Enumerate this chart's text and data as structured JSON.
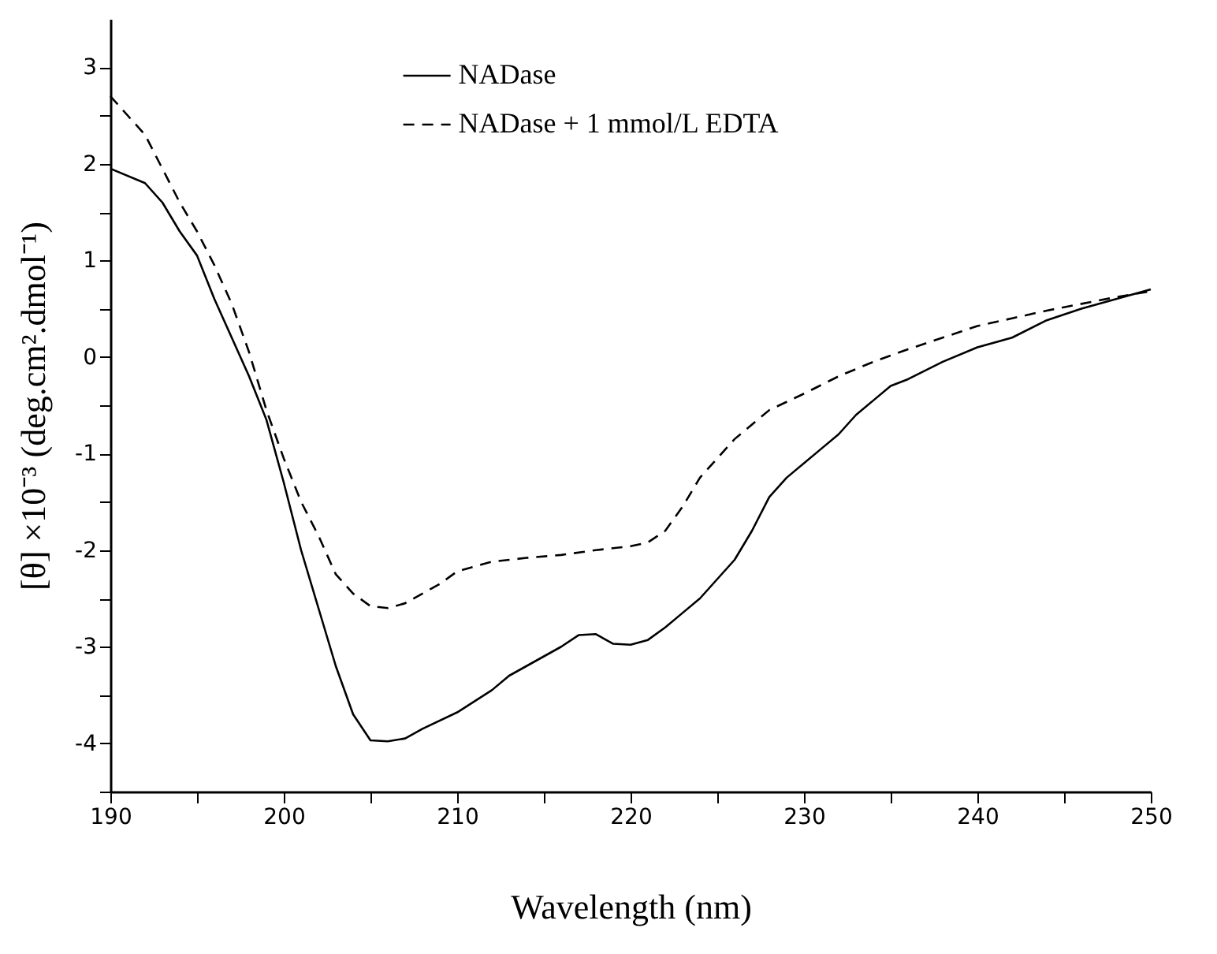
{
  "chart_data": {
    "type": "line",
    "xlabel": "Wavelength (nm)",
    "ylabel": "[θ] ×10⁻³ (deg.cm².dmol⁻¹)",
    "xlim": [
      190,
      250
    ],
    "ylim": [
      -4.5,
      3.5
    ],
    "xticks": [
      190,
      {
        "value": 195,
        "label": null
      },
      200,
      {
        "value": 205,
        "label": null
      },
      210,
      {
        "value": 215,
        "label": null
      },
      220,
      {
        "value": 225,
        "label": null
      },
      230,
      {
        "value": 235,
        "label": null
      },
      240,
      {
        "value": 245,
        "label": null
      },
      250
    ],
    "yticks": [
      {
        "value": -4.5,
        "label": null
      },
      -4,
      {
        "value": -3.5,
        "label": null
      },
      -3,
      {
        "value": -2.5,
        "label": null
      },
      -2,
      {
        "value": -1.5,
        "label": null
      },
      -1,
      {
        "value": -0.5,
        "label": null
      },
      0,
      {
        "value": 0.5,
        "label": null
      },
      1,
      {
        "value": 1.5,
        "label": null
      },
      2,
      {
        "value": 2.5,
        "label": null
      },
      3
    ],
    "grid": false,
    "legend": "top",
    "marker": "none",
    "series": [
      {
        "name": "NADase",
        "color": "#000000",
        "line_style": "solid",
        "x": [
          190,
          192,
          193,
          194,
          195,
          196,
          197,
          198,
          199,
          200,
          201,
          202,
          203,
          204,
          205,
          206,
          207,
          208,
          210,
          212,
          213,
          215,
          216,
          217,
          218,
          219,
          220,
          221,
          222,
          223,
          224,
          225,
          226,
          227,
          228,
          229,
          230,
          231,
          232,
          233,
          234,
          235,
          236,
          238,
          240,
          242,
          244,
          246,
          248,
          250
        ],
        "values": [
          1.95,
          1.8,
          1.6,
          1.3,
          1.05,
          0.6,
          0.2,
          -0.2,
          -0.65,
          -1.3,
          -2.0,
          -2.6,
          -3.2,
          -3.7,
          -3.97,
          -3.98,
          -3.95,
          -3.85,
          -3.68,
          -3.45,
          -3.3,
          -3.1,
          -3.0,
          -2.88,
          -2.87,
          -2.97,
          -2.98,
          -2.93,
          -2.8,
          -2.65,
          -2.5,
          -2.3,
          -2.1,
          -1.8,
          -1.45,
          -1.25,
          -1.1,
          -0.95,
          -0.8,
          -0.6,
          -0.45,
          -0.3,
          -0.23,
          -0.05,
          0.1,
          0.2,
          0.38,
          0.5,
          0.6,
          0.7
        ]
      },
      {
        "name": "NADase + 1 mmol/L EDTA",
        "color": "#000000",
        "line_style": "dashed",
        "x": [
          190,
          191,
          192,
          193,
          194,
          195,
          196,
          197,
          198,
          199,
          200,
          201,
          202,
          203,
          204,
          205,
          206,
          207,
          208,
          209,
          210,
          212,
          214,
          216,
          218,
          220,
          221,
          222,
          223,
          224,
          225,
          226,
          227,
          228,
          230,
          232,
          234,
          236,
          238,
          240,
          242,
          244,
          246,
          248,
          250
        ],
        "values": [
          2.7,
          2.5,
          2.3,
          1.95,
          1.6,
          1.3,
          0.95,
          0.55,
          0.05,
          -0.55,
          -1.05,
          -1.5,
          -1.85,
          -2.25,
          -2.45,
          -2.58,
          -2.6,
          -2.55,
          -2.45,
          -2.35,
          -2.22,
          -2.12,
          -2.08,
          -2.05,
          -2.0,
          -1.96,
          -1.92,
          -1.8,
          -1.55,
          -1.25,
          -1.05,
          -0.85,
          -0.7,
          -0.55,
          -0.38,
          -0.2,
          -0.05,
          0.08,
          0.2,
          0.32,
          0.4,
          0.48,
          0.55,
          0.62,
          0.68
        ]
      }
    ]
  }
}
